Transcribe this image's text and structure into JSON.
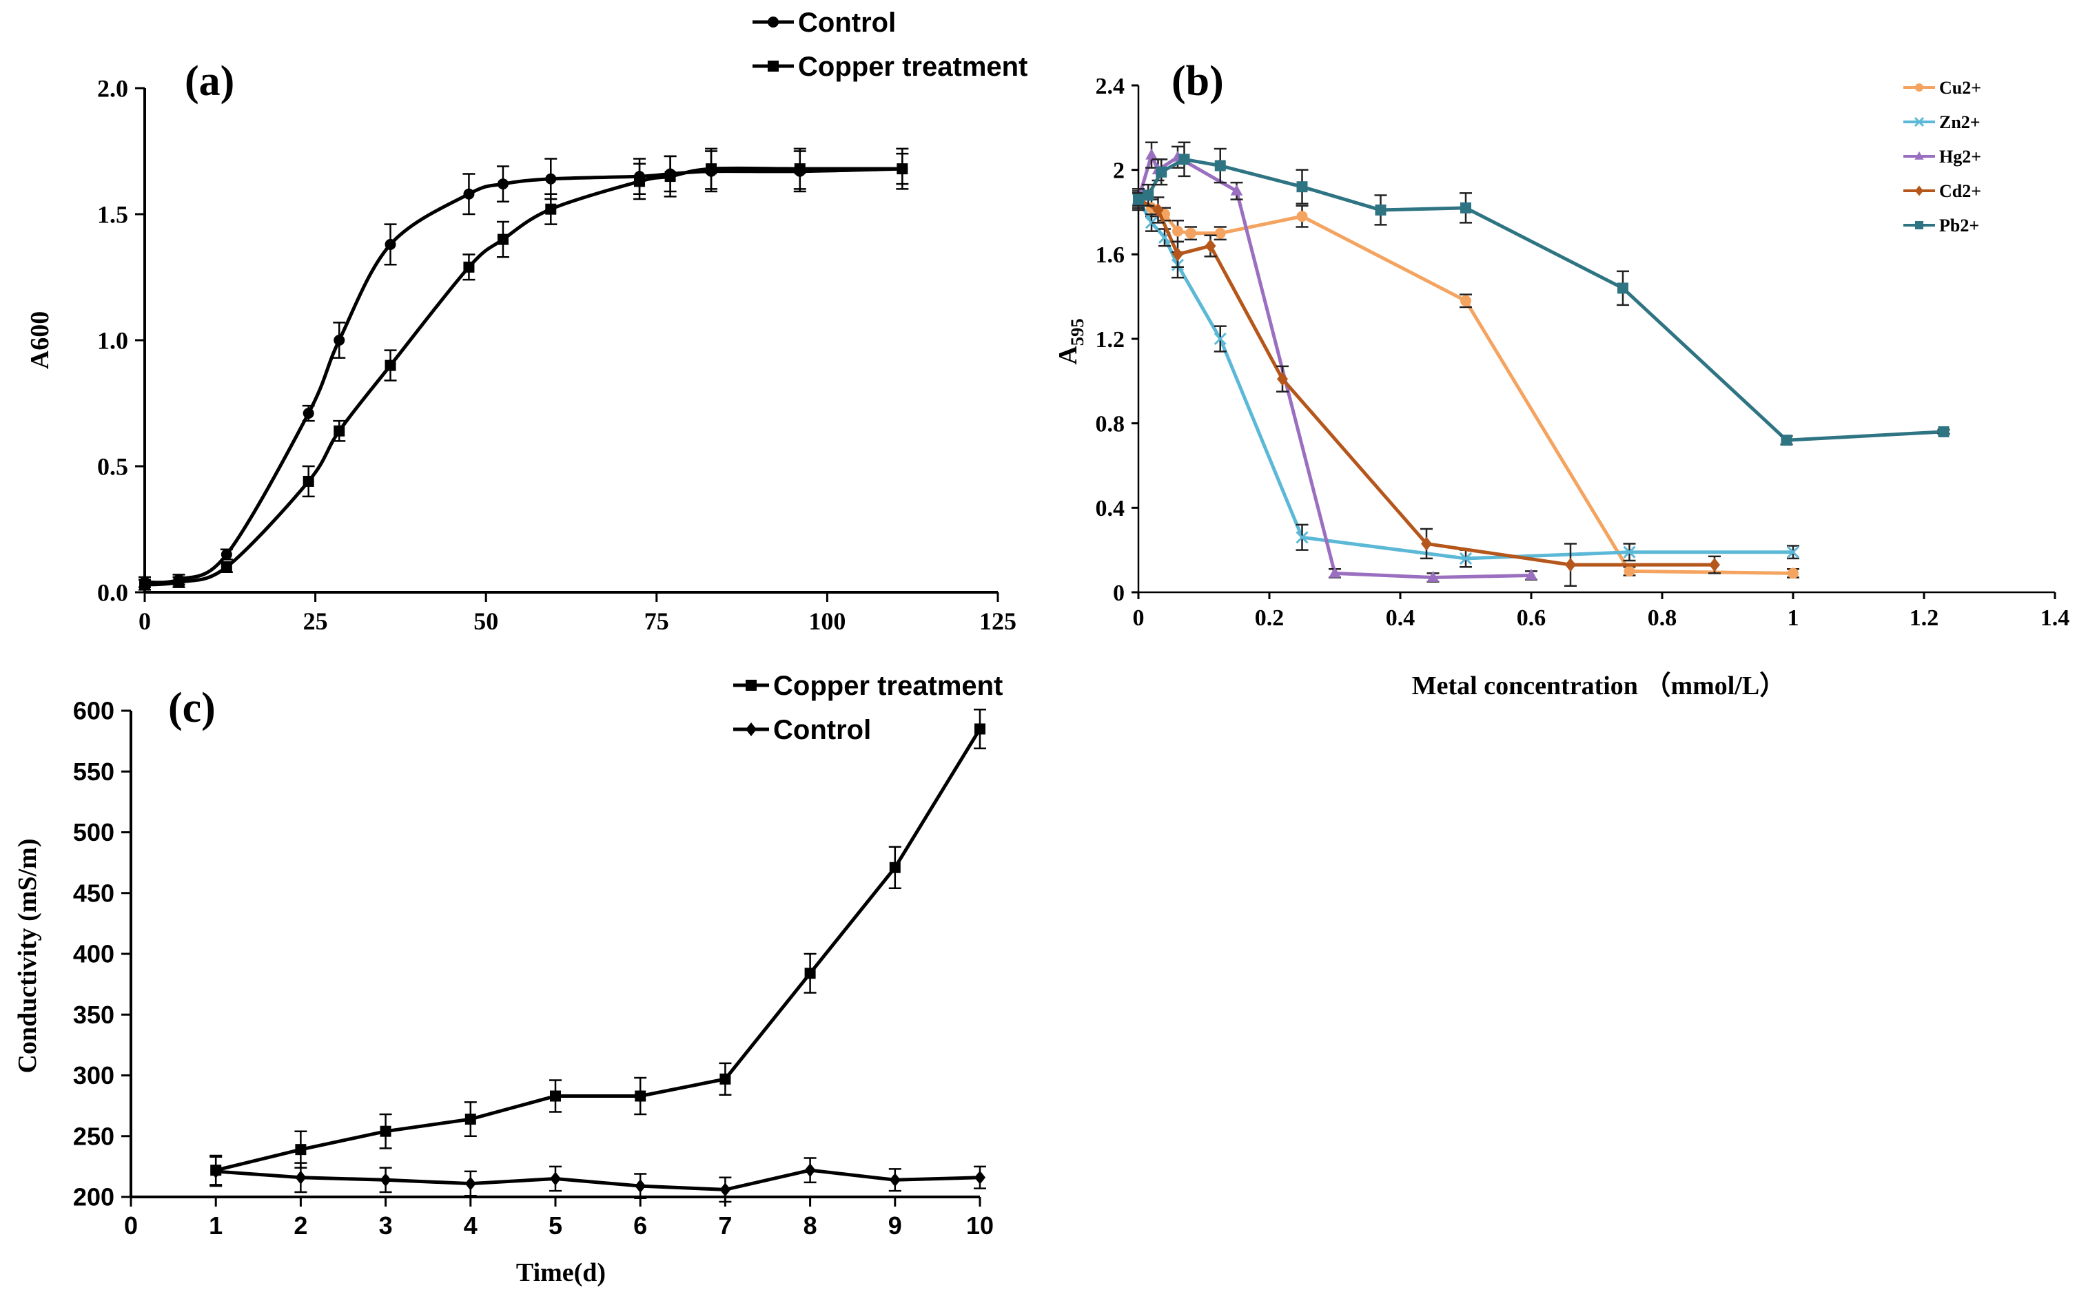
{
  "figure": "Composite figure with three panels (a), (b), (c)",
  "chart_data": [
    {
      "id": "a",
      "panel_label": "(a)",
      "type": "line",
      "title": "",
      "xlabel": "",
      "ylabel": "A600",
      "xlim": [
        0,
        125
      ],
      "ylim": [
        0,
        2.0
      ],
      "xticks": [
        0,
        25,
        50,
        75,
        100,
        125
      ],
      "yticks": [
        0.0,
        0.5,
        1.0,
        1.5,
        2.0
      ],
      "ytick_labels": [
        "0.0",
        "0.5",
        "1.0",
        "1.5",
        "2.0"
      ],
      "grid": false,
      "legend_position": "top",
      "series": [
        {
          "name": "Control",
          "marker": "circle",
          "color": "#000000",
          "x": [
            0,
            5,
            12,
            24,
            28.5,
            36,
            47.5,
            52.5,
            59.5,
            72.5,
            77,
            83,
            96,
            111
          ],
          "y": [
            0.04,
            0.05,
            0.15,
            0.71,
            1.0,
            1.38,
            1.58,
            1.62,
            1.64,
            1.65,
            1.66,
            1.67,
            1.67,
            1.68
          ],
          "yerr": [
            0.02,
            0.02,
            0.02,
            0.03,
            0.07,
            0.08,
            0.08,
            0.07,
            0.08,
            0.07,
            0.07,
            0.08,
            0.08,
            0.08
          ]
        },
        {
          "name": "Copper treatment",
          "marker": "square",
          "color": "#000000",
          "x": [
            0,
            5,
            12,
            24,
            28.5,
            36,
            47.5,
            52.5,
            59.5,
            72.5,
            77,
            83,
            96,
            111
          ],
          "y": [
            0.03,
            0.04,
            0.1,
            0.44,
            0.64,
            0.9,
            1.29,
            1.4,
            1.52,
            1.63,
            1.65,
            1.68,
            1.68,
            1.68
          ],
          "yerr": [
            0.02,
            0.02,
            0.02,
            0.06,
            0.04,
            0.06,
            0.05,
            0.07,
            0.06,
            0.07,
            0.08,
            0.08,
            0.08,
            0.06
          ]
        }
      ]
    },
    {
      "id": "b",
      "panel_label": "(b)",
      "type": "line",
      "title": "",
      "xlabel": "Metal concentration （mmol/L）",
      "ylabel": "A",
      "ylabel_subscript": "595",
      "xlim": [
        0,
        1.4
      ],
      "ylim": [
        0,
        2.4
      ],
      "xticks": [
        0,
        0.2,
        0.4,
        0.6,
        0.8,
        1,
        1.2,
        1.4
      ],
      "xtick_labels": [
        "0",
        "0.2",
        "0.4",
        "0.6",
        "0.8",
        "1",
        "1.2",
        "1.4"
      ],
      "yticks": [
        0,
        0.4,
        0.8,
        1.2,
        1.6,
        2,
        2.4
      ],
      "ytick_labels": [
        "0",
        "0.4",
        "0.8",
        "1.2",
        "1.6",
        "2",
        "2.4"
      ],
      "grid": false,
      "legend_position": "top-right",
      "series": [
        {
          "name": "Cu2+",
          "marker": "circle",
          "color": "#f4a460",
          "x": [
            0,
            0.02,
            0.04,
            0.06,
            0.08,
            0.125,
            0.25,
            0.5,
            0.75,
            1.0
          ],
          "y": [
            1.86,
            1.82,
            1.79,
            1.71,
            1.7,
            1.7,
            1.78,
            1.38,
            0.1,
            0.09
          ],
          "yerr": [
            0.03,
            0.04,
            0.03,
            0.05,
            0.03,
            0.03,
            0.05,
            0.03,
            0.02,
            0.02
          ]
        },
        {
          "name": "Zn2+",
          "marker": "x",
          "color": "#5bb8d6",
          "x": [
            0,
            0.02,
            0.04,
            0.06,
            0.125,
            0.25,
            0.5,
            0.75,
            1.0
          ],
          "y": [
            1.86,
            1.75,
            1.68,
            1.55,
            1.2,
            0.26,
            0.16,
            0.19,
            0.19
          ],
          "yerr": [
            0.04,
            0.04,
            0.04,
            0.06,
            0.06,
            0.06,
            0.04,
            0.04,
            0.03
          ]
        },
        {
          "name": "Hg2+",
          "marker": "triangle",
          "color": "#9b6fc0",
          "x": [
            0,
            0.02,
            0.03,
            0.06,
            0.15,
            0.3,
            0.45,
            0.6
          ],
          "y": [
            1.86,
            2.07,
            2.0,
            2.06,
            1.9,
            0.09,
            0.07,
            0.08
          ],
          "yerr": [
            0.03,
            0.06,
            0.05,
            0.05,
            0.04,
            0.02,
            0.02,
            0.02
          ]
        },
        {
          "name": "Cd2+",
          "marker": "diamond",
          "color": "#b5561b",
          "x": [
            0,
            0.03,
            0.06,
            0.11,
            0.22,
            0.44,
            0.66,
            0.88
          ],
          "y": [
            1.86,
            1.81,
            1.6,
            1.64,
            1.01,
            0.23,
            0.13,
            0.13
          ],
          "yerr": [
            0.05,
            0.06,
            0.06,
            0.05,
            0.06,
            0.07,
            0.1,
            0.04
          ]
        },
        {
          "name": "Pb2+",
          "marker": "square",
          "color": "#2e7483",
          "x": [
            0,
            0.015,
            0.035,
            0.07,
            0.125,
            0.25,
            0.37,
            0.5,
            0.74,
            0.99,
            1.23
          ],
          "y": [
            1.86,
            1.88,
            1.99,
            2.05,
            2.02,
            1.92,
            1.81,
            1.82,
            1.44,
            0.72,
            0.76
          ],
          "yerr": [
            0.05,
            0.05,
            0.06,
            0.08,
            0.08,
            0.08,
            0.07,
            0.07,
            0.08,
            0.02,
            0.01
          ]
        }
      ]
    },
    {
      "id": "c",
      "panel_label": "(c)",
      "type": "line",
      "title": "",
      "xlabel": "Time(d)",
      "ylabel": "Conductivity (mS/m)",
      "xlim": [
        0,
        10
      ],
      "ylim": [
        200,
        600
      ],
      "xticks": [
        0,
        1,
        2,
        3,
        4,
        5,
        6,
        7,
        8,
        9,
        10
      ],
      "yticks": [
        200,
        250,
        300,
        350,
        400,
        450,
        500,
        550,
        600
      ],
      "grid": false,
      "legend_position": "top",
      "series": [
        {
          "name": "Copper treatment",
          "marker": "square",
          "color": "#000000",
          "x": [
            1,
            2,
            3,
            4,
            5,
            6,
            7,
            8,
            9,
            10
          ],
          "y": [
            222,
            239,
            254,
            264,
            283,
            283,
            297,
            384,
            471,
            585
          ],
          "yerr": [
            12,
            15,
            14,
            14,
            13,
            15,
            13,
            16,
            17,
            16
          ]
        },
        {
          "name": "Control",
          "marker": "diamond",
          "color": "#000000",
          "x": [
            1,
            2,
            3,
            4,
            5,
            6,
            7,
            8,
            9,
            10
          ],
          "y": [
            221,
            216,
            214,
            211,
            215,
            209,
            206,
            222,
            214,
            216
          ],
          "yerr": [
            12,
            12,
            10,
            10,
            10,
            10,
            10,
            10,
            9,
            9
          ]
        }
      ]
    }
  ]
}
